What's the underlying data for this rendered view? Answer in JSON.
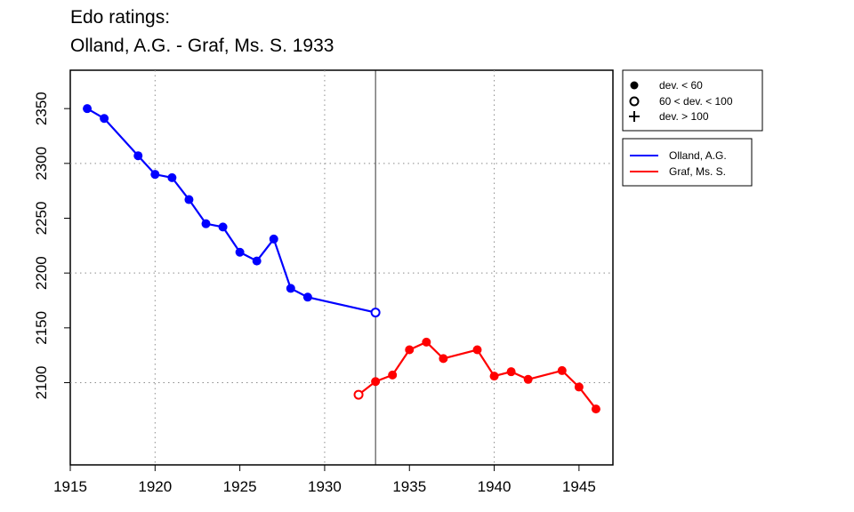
{
  "title": {
    "line1": "Edo ratings:",
    "line2": "Olland, A.G. - Graf, Ms. S. 1933"
  },
  "chart_data": {
    "type": "line",
    "xlim": [
      1915,
      1947
    ],
    "ylim": [
      2025,
      2385
    ],
    "x_ticks": [
      1915,
      1920,
      1925,
      1930,
      1935,
      1940,
      1945
    ],
    "y_ticks": [
      2100,
      2150,
      2200,
      2250,
      2300,
      2350
    ],
    "grid_x": [
      1920,
      1930,
      1940
    ],
    "grid_y": [
      2100,
      2200,
      2300
    ],
    "grid": "dotted",
    "reference_line_x": 1933,
    "marker_legend": [
      {
        "symbol": "filled-circle",
        "label": "dev. < 60"
      },
      {
        "symbol": "open-circle",
        "label": "60 < dev. < 100"
      },
      {
        "symbol": "plus",
        "label": "dev. > 100"
      }
    ],
    "series": [
      {
        "name": "Olland, A.G.",
        "color": "#0000ff",
        "points": [
          {
            "x": 1916,
            "y": 2350,
            "m": "filled-circle"
          },
          {
            "x": 1917,
            "y": 2341,
            "m": "filled-circle"
          },
          {
            "x": 1919,
            "y": 2307,
            "m": "filled-circle"
          },
          {
            "x": 1920,
            "y": 2290,
            "m": "filled-circle"
          },
          {
            "x": 1921,
            "y": 2287,
            "m": "filled-circle"
          },
          {
            "x": 1922,
            "y": 2267,
            "m": "filled-circle"
          },
          {
            "x": 1923,
            "y": 2245,
            "m": "filled-circle"
          },
          {
            "x": 1924,
            "y": 2242,
            "m": "filled-circle"
          },
          {
            "x": 1925,
            "y": 2219,
            "m": "filled-circle"
          },
          {
            "x": 1926,
            "y": 2211,
            "m": "filled-circle"
          },
          {
            "x": 1927,
            "y": 2231,
            "m": "filled-circle"
          },
          {
            "x": 1928,
            "y": 2186,
            "m": "filled-circle"
          },
          {
            "x": 1929,
            "y": 2178,
            "m": "filled-circle"
          },
          {
            "x": 1933,
            "y": 2164,
            "m": "open-circle"
          }
        ]
      },
      {
        "name": "Graf, Ms. S.",
        "color": "#ff0000",
        "points": [
          {
            "x": 1932,
            "y": 2089,
            "m": "open-circle"
          },
          {
            "x": 1933,
            "y": 2101,
            "m": "filled-circle"
          },
          {
            "x": 1934,
            "y": 2107,
            "m": "filled-circle"
          },
          {
            "x": 1935,
            "y": 2130,
            "m": "filled-circle"
          },
          {
            "x": 1936,
            "y": 2137,
            "m": "filled-circle"
          },
          {
            "x": 1937,
            "y": 2122,
            "m": "filled-circle"
          },
          {
            "x": 1939,
            "y": 2130,
            "m": "filled-circle"
          },
          {
            "x": 1940,
            "y": 2106,
            "m": "filled-circle"
          },
          {
            "x": 1941,
            "y": 2110,
            "m": "filled-circle"
          },
          {
            "x": 1942,
            "y": 2103,
            "m": "filled-circle"
          },
          {
            "x": 1944,
            "y": 2111,
            "m": "filled-circle"
          },
          {
            "x": 1945,
            "y": 2096,
            "m": "filled-circle"
          },
          {
            "x": 1946,
            "y": 2076,
            "m": "filled-circle"
          }
        ]
      }
    ]
  }
}
